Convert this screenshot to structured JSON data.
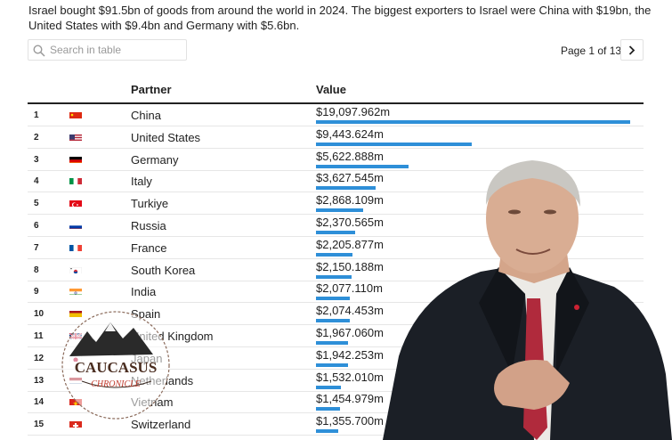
{
  "intro": "Israel bought $91.5bn of goods from around the world in 2024. The biggest exporters to Israel were China with $19bn, the United States with $9.4bn and Germany with $5.6bn.",
  "search": {
    "placeholder": "Search in table"
  },
  "pager": {
    "text": "Page 1 of 13"
  },
  "table": {
    "columns": {
      "partner": "Partner",
      "value": "Value"
    },
    "max_value": 19097.962,
    "rows": [
      {
        "rank": "1",
        "flag": "china",
        "partner": "China",
        "value": "$19,097.962m",
        "amount": 19097.962
      },
      {
        "rank": "2",
        "flag": "united-states",
        "partner": "United States",
        "value": "$9,443.624m",
        "amount": 9443.624
      },
      {
        "rank": "3",
        "flag": "germany",
        "partner": "Germany",
        "value": "$5,622.888m",
        "amount": 5622.888
      },
      {
        "rank": "4",
        "flag": "italy",
        "partner": "Italy",
        "value": "$3,627.545m",
        "amount": 3627.545
      },
      {
        "rank": "5",
        "flag": "turkiye",
        "partner": "Turkiye",
        "value": "$2,868.109m",
        "amount": 2868.109
      },
      {
        "rank": "6",
        "flag": "russia",
        "partner": "Russia",
        "value": "$2,370.565m",
        "amount": 2370.565
      },
      {
        "rank": "7",
        "flag": "france",
        "partner": "France",
        "value": "$2,205.877m",
        "amount": 2205.877
      },
      {
        "rank": "8",
        "flag": "south-korea",
        "partner": "South Korea",
        "value": "$2,150.188m",
        "amount": 2150.188
      },
      {
        "rank": "9",
        "flag": "india",
        "partner": "India",
        "value": "$2,077.110m",
        "amount": 2077.11
      },
      {
        "rank": "10",
        "flag": "spain",
        "partner": "Spain",
        "value": "$2,074.453m",
        "amount": 2074.453
      },
      {
        "rank": "11",
        "flag": "united-kingdom",
        "partner": "United Kingdom",
        "value": "$1,967.060m",
        "amount": 1967.06
      },
      {
        "rank": "12",
        "flag": "japan",
        "partner": "Japan",
        "value": "$1,942.253m",
        "amount": 1942.253
      },
      {
        "rank": "13",
        "flag": "netherlands",
        "partner": "Netherlands",
        "value": "$1,532.010m",
        "amount": 1532.01
      },
      {
        "rank": "14",
        "flag": "vietnam",
        "partner": "Vietnam",
        "value": "$1,454.979m",
        "amount": 1454.979
      },
      {
        "rank": "15",
        "flag": "switzerland",
        "partner": "Switzerland",
        "value": "$1,355.700m",
        "amount": 1355.7
      }
    ]
  },
  "watermark": {
    "line1": "CAUCASUS",
    "line2": "CHRONICLE"
  },
  "colors": {
    "bar": "#2e8fd8",
    "watermark_red": "#c0392b"
  }
}
